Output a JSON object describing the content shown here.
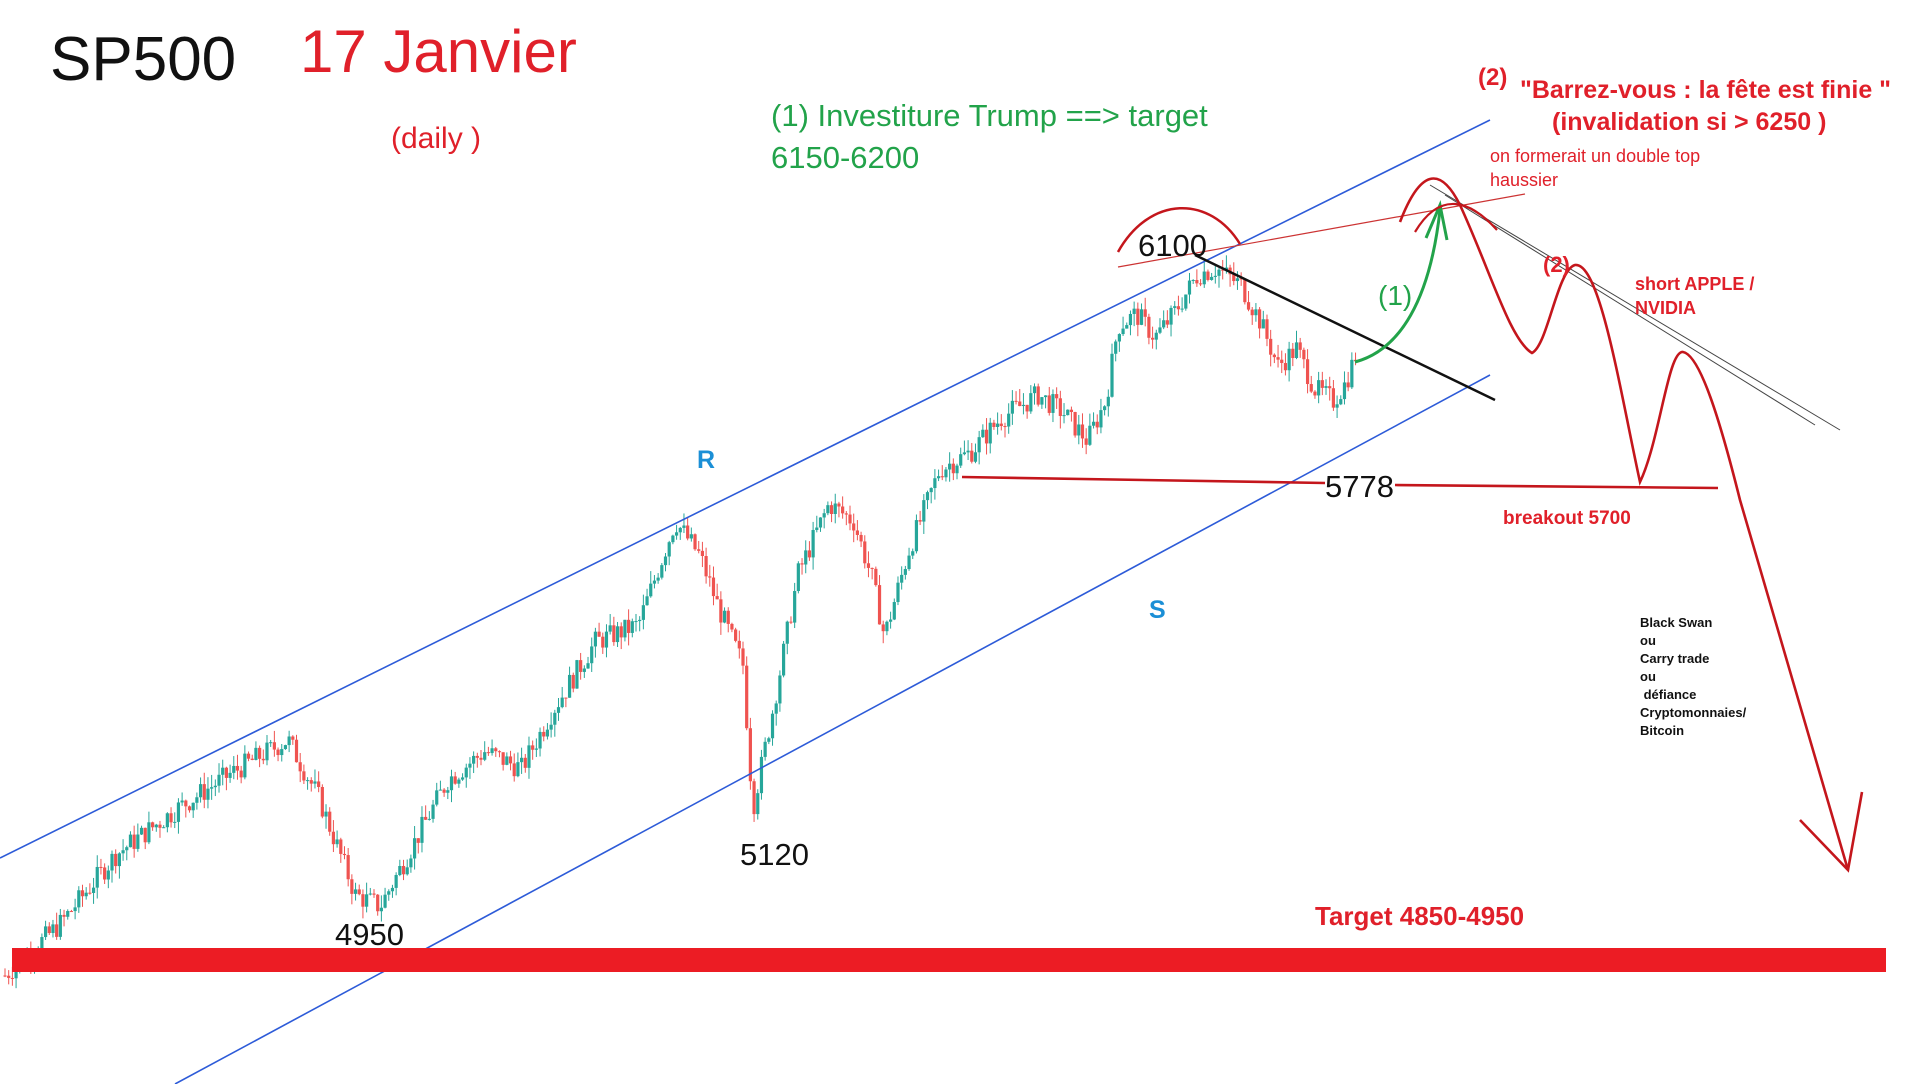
{
  "colors": {
    "up": "#26a69a",
    "down": "#ef5350",
    "annotation_red": "#e0202a",
    "target_bar": "#ec1c24",
    "channel_blue": "#2d5bd8",
    "green": "#22a34a",
    "label_blue": "#1b8fd6",
    "black": "#111111"
  },
  "header": {
    "symbol": "SP500",
    "date": "17 Janvier",
    "timeframe": "(daily )"
  },
  "scenario1": {
    "line1": "(1) Investiture Trump ==> target",
    "line2": "6150-6200",
    "marker": "(1)"
  },
  "scenario2": {
    "tag": "(2)",
    "title": "\"Barrez-vous : la fête est finie \"",
    "invalidation": "(invalidation si > 6250 )",
    "note_line1": "on formerait un double top",
    "note_line2": "haussier",
    "marker": "(2)",
    "short_line1": "short APPLE /",
    "short_line2": "NVIDIA"
  },
  "levels": {
    "top": "6100",
    "support": "5778",
    "low1": "5120",
    "low2": "4950",
    "breakout": "breakout 5700",
    "target": "Target 4850-4950"
  },
  "channel_labels": {
    "resistance": "R",
    "support": "S"
  },
  "risks": {
    "title": "Black Swan",
    "or1": "ou",
    "item2": "Carry trade",
    "or2": "ou",
    "item3": " défiance",
    "item4": "Cryptomonnaies/",
    "item5": "Bitcoin"
  },
  "chart_data": {
    "type": "candlestick",
    "timeframe": "daily",
    "close_path": [
      [
        0,
        4860
      ],
      [
        45,
        4950
      ],
      [
        90,
        5070
      ],
      [
        140,
        5150
      ],
      [
        190,
        5220
      ],
      [
        230,
        5270
      ],
      [
        255,
        5170
      ],
      [
        285,
        5000
      ],
      [
        305,
        4980
      ],
      [
        330,
        5080
      ],
      [
        360,
        5200
      ],
      [
        390,
        5250
      ],
      [
        420,
        5220
      ],
      [
        445,
        5320
      ],
      [
        480,
        5440
      ],
      [
        515,
        5470
      ],
      [
        545,
        5650
      ],
      [
        565,
        5590
      ],
      [
        580,
        5500
      ],
      [
        600,
        5400
      ],
      [
        608,
        5150
      ],
      [
        625,
        5330
      ],
      [
        645,
        5560
      ],
      [
        670,
        5680
      ],
      [
        690,
        5650
      ],
      [
        705,
        5550
      ],
      [
        715,
        5450
      ],
      [
        735,
        5600
      ],
      [
        760,
        5740
      ],
      [
        785,
        5770
      ],
      [
        810,
        5830
      ],
      [
        840,
        5870
      ],
      [
        860,
        5840
      ],
      [
        880,
        5790
      ],
      [
        895,
        5860
      ],
      [
        905,
        5990
      ],
      [
        920,
        6010
      ],
      [
        935,
        5970
      ],
      [
        950,
        6010
      ],
      [
        970,
        6080
      ],
      [
        985,
        6090
      ],
      [
        1005,
        6060
      ],
      [
        1020,
        6000
      ],
      [
        1035,
        5920
      ],
      [
        1050,
        5950
      ],
      [
        1065,
        5880
      ],
      [
        1080,
        5860
      ],
      [
        1090,
        5890
      ],
      [
        1100,
        5950
      ]
    ],
    "annotated_levels": [
      4950,
      5120,
      5700,
      5778,
      6100
    ],
    "scenario_1_target": [
      6150,
      6200
    ],
    "scenario_2_invalidation": 6250,
    "scenario_2_target": [
      4850,
      4950
    ]
  }
}
